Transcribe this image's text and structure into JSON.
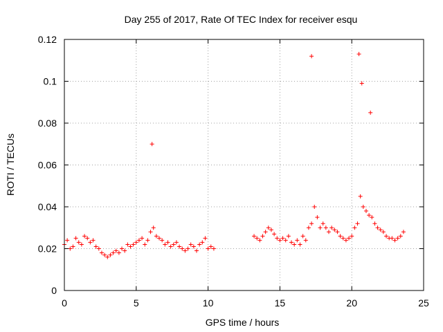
{
  "chart_data": {
    "type": "scatter",
    "title": "Day 255 of 2017, Rate Of TEC Index for receiver esqu",
    "xlabel": "GPS time / hours",
    "ylabel": "ROTI / TECUs",
    "xlim": [
      0,
      25
    ],
    "ylim": [
      0,
      0.12
    ],
    "x_ticks": [
      0,
      5,
      10,
      15,
      20,
      25
    ],
    "x_tick_labels": [
      "0",
      "5",
      "10",
      "15",
      "20",
      "25"
    ],
    "y_ticks": [
      0,
      0.02,
      0.04,
      0.06,
      0.08,
      0.1,
      0.12
    ],
    "y_tick_labels": [
      "0",
      "0.02",
      "0.04",
      "0.06",
      "0.08",
      "0.1",
      "0.12"
    ],
    "grid": true,
    "marker": "plus",
    "color": "#ff0000",
    "series": [
      {
        "x": [
          0.0,
          0.2,
          0.4,
          0.6,
          0.8,
          1.0,
          1.2,
          1.4,
          1.6,
          1.8,
          2.0,
          2.2,
          2.4,
          2.6,
          2.8,
          3.0,
          3.2,
          3.4,
          3.6,
          3.8,
          4.0,
          4.2,
          4.4,
          4.6,
          4.8,
          5.0,
          5.2,
          5.4,
          5.6,
          5.8,
          6.0,
          6.2,
          6.4,
          6.6,
          6.8,
          7.0,
          7.2,
          7.4,
          7.6,
          7.8,
          8.0,
          8.2,
          8.4,
          8.6,
          8.8,
          9.0,
          9.2,
          9.4,
          9.6,
          9.8,
          10.0,
          10.2,
          10.4,
          13.2,
          13.4,
          13.6,
          13.8,
          14.0,
          14.2,
          14.4,
          14.6,
          14.8,
          15.0,
          15.2,
          15.4,
          15.6,
          15.8,
          16.0,
          16.2,
          16.4,
          16.6,
          16.8,
          17.0,
          17.2,
          17.4,
          17.6,
          17.8,
          18.0,
          18.2,
          18.4,
          18.6,
          18.8,
          19.0,
          19.2,
          19.4,
          19.6,
          19.8,
          20.0,
          20.2,
          20.4,
          20.6,
          20.8,
          21.0,
          21.2,
          21.4,
          21.6,
          21.8,
          22.0,
          22.2,
          22.4,
          22.6,
          22.8,
          23.0,
          23.2,
          23.4,
          23.6
        ],
        "y": [
          0.022,
          0.024,
          0.02,
          0.021,
          0.025,
          0.023,
          0.022,
          0.026,
          0.025,
          0.023,
          0.024,
          0.021,
          0.02,
          0.018,
          0.017,
          0.016,
          0.017,
          0.018,
          0.019,
          0.018,
          0.02,
          0.019,
          0.022,
          0.021,
          0.022,
          0.023,
          0.024,
          0.025,
          0.022,
          0.024,
          0.028,
          0.03,
          0.026,
          0.025,
          0.024,
          0.022,
          0.023,
          0.021,
          0.022,
          0.023,
          0.021,
          0.02,
          0.019,
          0.02,
          0.022,
          0.021,
          0.019,
          0.022,
          0.023,
          0.025,
          0.02,
          0.021,
          0.02,
          0.026,
          0.025,
          0.024,
          0.026,
          0.028,
          0.03,
          0.029,
          0.027,
          0.025,
          0.024,
          0.025,
          0.024,
          0.026,
          0.023,
          0.022,
          0.024,
          0.022,
          0.026,
          0.024,
          0.03,
          0.032,
          0.04,
          0.035,
          0.03,
          0.032,
          0.03,
          0.028,
          0.03,
          0.029,
          0.028,
          0.026,
          0.025,
          0.024,
          0.025,
          0.026,
          0.03,
          0.032,
          0.045,
          0.04,
          0.038,
          0.036,
          0.035,
          0.032,
          0.03,
          0.029,
          0.028,
          0.026,
          0.025,
          0.025,
          0.024,
          0.025,
          0.026,
          0.028
        ]
      }
    ],
    "annotations": [
      {
        "x": 6.1,
        "y": 0.07
      },
      {
        "x": 17.2,
        "y": 0.112
      },
      {
        "x": 20.5,
        "y": 0.113
      },
      {
        "x": 20.7,
        "y": 0.099
      },
      {
        "x": 21.3,
        "y": 0.085
      }
    ]
  }
}
